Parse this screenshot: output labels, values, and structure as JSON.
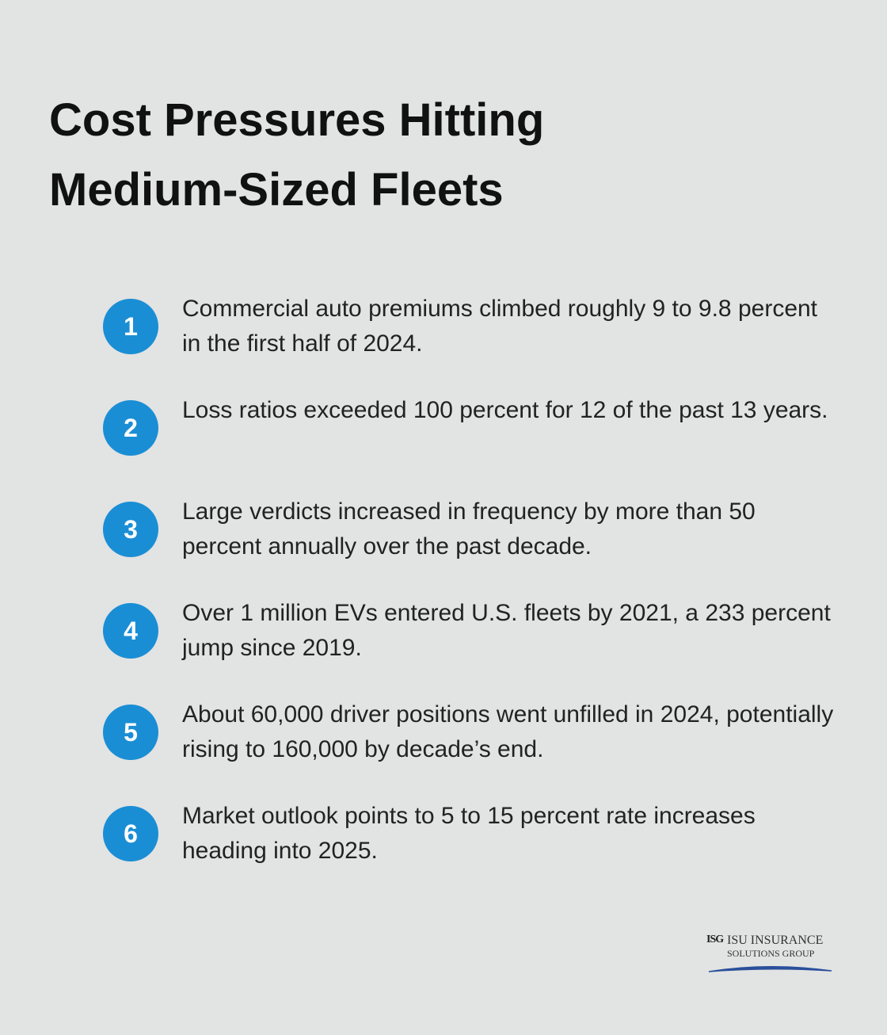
{
  "header": {
    "title_lines": [
      "Cost Pressures Hitting",
      "Medium-Sized Fleets"
    ]
  },
  "items": [
    {
      "number": 1,
      "text": "Commercial auto premiums climbed roughly 9 to 9.8 percent in the first half of 2024."
    },
    {
      "number": 2,
      "text": "Loss ratios exceeded 100 percent for 12 of the past 13 years."
    },
    {
      "number": 3,
      "text": "Large verdicts increased in frequency by more than 50 percent annually over the past decade."
    },
    {
      "number": 4,
      "text": "Over 1 million EVs entered U.S. fleets by 2021, a 233 percent jump since 2019."
    },
    {
      "number": 5,
      "text": "About 60,000 driver positions went unfilled in 2024, potentially rising to 160,000 by decade’s end."
    },
    {
      "number": 6,
      "text": "Market outlook points to 5 to 15 percent rate increases heading into 2025."
    }
  ],
  "logo": {
    "mark": "ISG",
    "lines": [
      "ISU INSURANCE",
      "SOLUTIONS GROUP"
    ]
  }
}
